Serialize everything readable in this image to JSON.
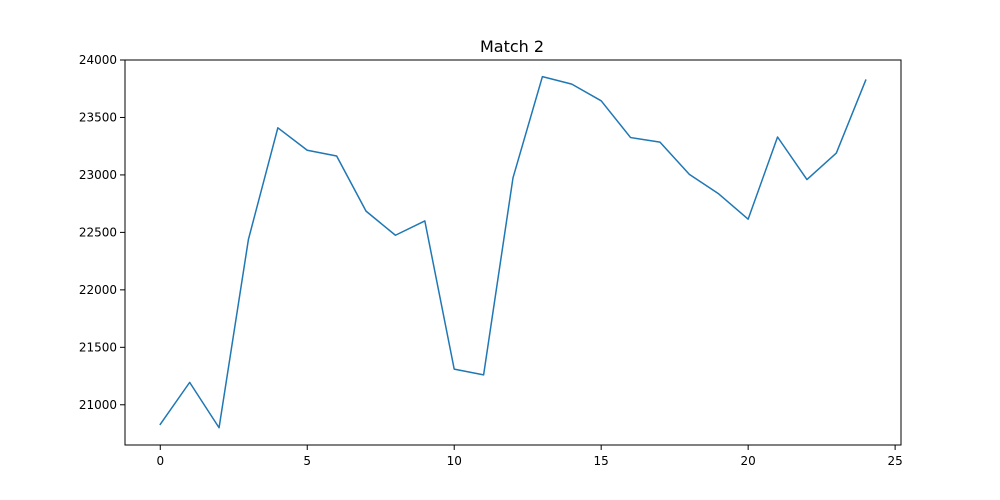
{
  "chart_data": {
    "type": "line",
    "title": "Match 2",
    "xlabel": "",
    "ylabel": "",
    "xlim": [
      -1.2,
      25.2
    ],
    "ylim": [
      20650,
      24000
    ],
    "x_ticks": [
      0,
      5,
      10,
      15,
      20,
      25
    ],
    "y_ticks": [
      21000,
      21500,
      22000,
      22500,
      23000,
      23500,
      24000
    ],
    "x_tick_labels": [
      "0",
      "5",
      "10",
      "15",
      "20",
      "25"
    ],
    "y_tick_labels": [
      "21000",
      "21500",
      "22000",
      "22500",
      "23000",
      "23500",
      "24000"
    ],
    "grid": false,
    "legend": "none",
    "series": [
      {
        "color": "#1f77b4",
        "x": [
          0,
          1,
          2,
          3,
          4,
          5,
          6,
          7,
          8,
          9,
          10,
          11,
          12,
          13,
          14,
          15,
          16,
          17,
          18,
          19,
          20,
          21,
          22,
          23,
          24
        ],
        "values": [
          20830,
          21195,
          20800,
          22440,
          23410,
          23215,
          23165,
          22685,
          22475,
          22600,
          21310,
          21260,
          22975,
          23855,
          23790,
          23645,
          23325,
          23285,
          23005,
          22835,
          22615,
          23330,
          22960,
          23190,
          23825
        ]
      }
    ]
  }
}
